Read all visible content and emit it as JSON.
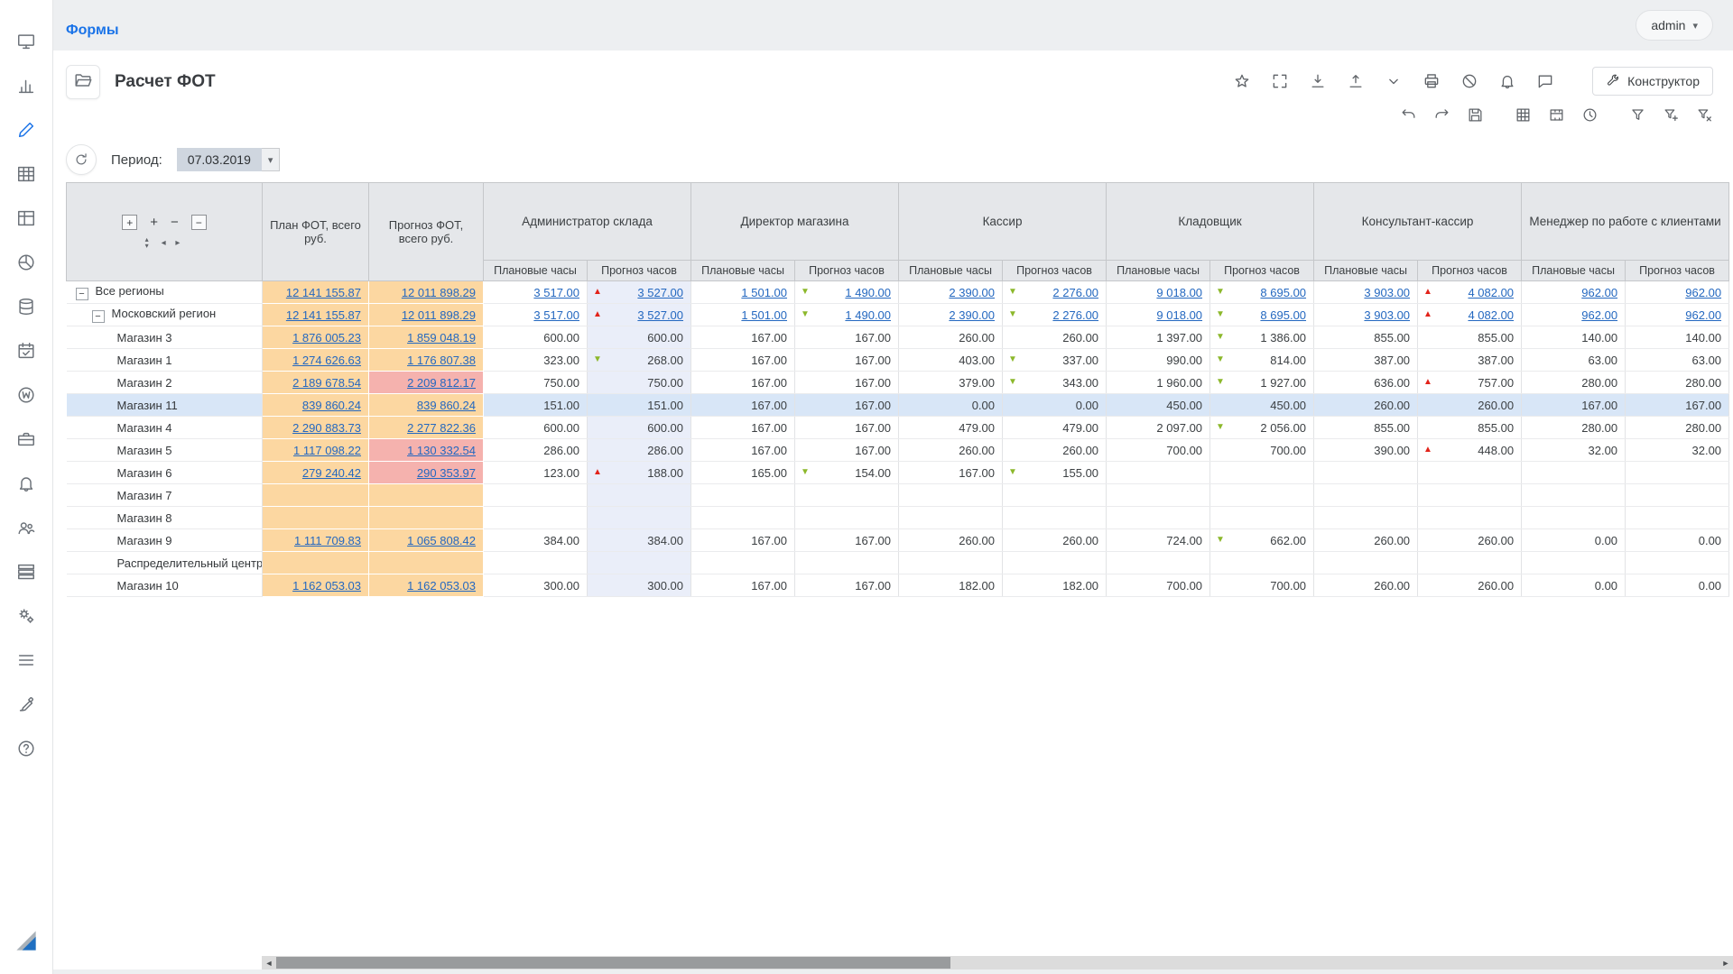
{
  "topbar": {
    "breadcrumb": "Формы",
    "user": "admin"
  },
  "header": {
    "title": "Расчет ФОТ",
    "constructor_label": "Конструктор",
    "toolbar_row1": [
      {
        "name": "favorite-star-icon"
      },
      {
        "name": "fullscreen-icon"
      },
      {
        "name": "download-icon"
      },
      {
        "name": "upload-icon"
      },
      {
        "name": "chevron-down-icon"
      },
      {
        "name": "print-icon"
      },
      {
        "name": "cancel-icon"
      },
      {
        "name": "notifications-bell-icon"
      },
      {
        "name": "comment-icon"
      }
    ],
    "toolbar_row2": [
      {
        "name": "undo-icon"
      },
      {
        "name": "redo-icon"
      },
      {
        "name": "save-icon"
      },
      {
        "name": "gridlines-icon",
        "gap": true
      },
      {
        "name": "merge-cells-icon"
      },
      {
        "name": "history-clock-icon"
      },
      {
        "name": "filter-icon",
        "gap": true
      },
      {
        "name": "filter-add-icon"
      },
      {
        "name": "filter-clear-icon"
      }
    ]
  },
  "sidebar": {
    "icons": [
      {
        "name": "monitor-icon"
      },
      {
        "name": "bar-chart-icon"
      },
      {
        "name": "edit-icon",
        "active": true
      },
      {
        "name": "table-icon"
      },
      {
        "name": "columns-icon"
      },
      {
        "name": "dashboard-icon"
      },
      {
        "name": "database-icon"
      },
      {
        "name": "calendar-icon"
      },
      {
        "name": "wiki-icon"
      },
      {
        "name": "briefcase-icon"
      },
      {
        "name": "bell-icon"
      },
      {
        "name": "users-icon"
      },
      {
        "name": "rows-icon"
      },
      {
        "name": "gears-icon"
      },
      {
        "name": "menu-icon"
      },
      {
        "name": "brush-icon"
      },
      {
        "name": "help-icon"
      }
    ]
  },
  "period": {
    "label": "Период:",
    "value": "07.03.2019"
  },
  "table": {
    "plan_header": "План ФОТ, всего руб.",
    "forecast_header": "Прогноз ФОТ, всего руб.",
    "groups": [
      "Администратор склада",
      "Директор магазина",
      "Кассир",
      "Кладовщик",
      "Консультант-кассир",
      "Менеджер по работе с клиентами"
    ],
    "sub_headers": [
      "Плановые часы",
      "Прогноз часов"
    ],
    "corner_controls": [
      {
        "name": "expand-all-button",
        "glyph": "+",
        "boxed": true
      },
      {
        "name": "expand-level-button",
        "glyph": "+"
      },
      {
        "name": "collapse-level-button",
        "glyph": "−"
      },
      {
        "name": "collapse-all-button",
        "glyph": "−",
        "boxed": true
      }
    ],
    "corner_nav": {
      "up": "▴",
      "down": "▾",
      "left": "◂",
      "right": "▸"
    },
    "rows": [
      {
        "label": "Все регионы",
        "level": 0,
        "toggle": true,
        "links": true,
        "selected": false,
        "plan": "12 141 155.87",
        "forecast": "12 011 898.29",
        "forecast_alert": false,
        "hours": [
          "3 517.00",
          {
            "v": "3 527.00",
            "i": "up"
          },
          "1 501.00",
          {
            "v": "1 490.00",
            "i": "down"
          },
          "2 390.00",
          {
            "v": "2 276.00",
            "i": "down"
          },
          "9 018.00",
          {
            "v": "8 695.00",
            "i": "down"
          },
          "3 903.00",
          {
            "v": "4 082.00",
            "i": "up"
          },
          "962.00",
          "962.00"
        ]
      },
      {
        "label": "Московский регион",
        "level": 1,
        "toggle": true,
        "links": true,
        "selected": false,
        "plan": "12 141 155.87",
        "forecast": "12 011 898.29",
        "forecast_alert": false,
        "hours": [
          "3 517.00",
          {
            "v": "3 527.00",
            "i": "up"
          },
          "1 501.00",
          {
            "v": "1 490.00",
            "i": "down"
          },
          "2 390.00",
          {
            "v": "2 276.00",
            "i": "down"
          },
          "9 018.00",
          {
            "v": "8 695.00",
            "i": "down"
          },
          "3 903.00",
          {
            "v": "4 082.00",
            "i": "up"
          },
          "962.00",
          "962.00"
        ]
      },
      {
        "label": "Магазин 3",
        "level": 2,
        "toggle": false,
        "links": false,
        "selected": false,
        "plan": "1 876 005.23",
        "forecast": "1 859 048.19",
        "forecast_alert": false,
        "hours": [
          "600.00",
          "600.00",
          "167.00",
          "167.00",
          "260.00",
          "260.00",
          "1 397.00",
          {
            "v": "1 386.00",
            "i": "down"
          },
          "855.00",
          "855.00",
          "140.00",
          "140.00"
        ]
      },
      {
        "label": "Магазин 1",
        "level": 2,
        "toggle": false,
        "links": false,
        "selected": false,
        "plan": "1 274 626.63",
        "forecast": "1 176 807.38",
        "forecast_alert": false,
        "hours": [
          "323.00",
          {
            "v": "268.00",
            "i": "down"
          },
          "167.00",
          "167.00",
          "403.00",
          {
            "v": "337.00",
            "i": "down"
          },
          "990.00",
          {
            "v": "814.00",
            "i": "down"
          },
          "387.00",
          "387.00",
          "63.00",
          "63.00"
        ]
      },
      {
        "label": "Магазин 2",
        "level": 2,
        "toggle": false,
        "links": false,
        "selected": false,
        "plan": "2 189 678.54",
        "forecast": "2 209 812.17",
        "forecast_alert": true,
        "hours": [
          "750.00",
          "750.00",
          "167.00",
          "167.00",
          "379.00",
          {
            "v": "343.00",
            "i": "down"
          },
          "1 960.00",
          {
            "v": "1 927.00",
            "i": "down"
          },
          "636.00",
          {
            "v": "757.00",
            "i": "up"
          },
          "280.00",
          "280.00"
        ]
      },
      {
        "label": "Магазин 11",
        "level": 2,
        "toggle": false,
        "links": false,
        "selected": true,
        "plan": "839 860.24",
        "forecast": "839 860.24",
        "forecast_alert": false,
        "hours": [
          "151.00",
          "151.00",
          "167.00",
          "167.00",
          "0.00",
          "0.00",
          "450.00",
          "450.00",
          "260.00",
          "260.00",
          "167.00",
          "167.00"
        ]
      },
      {
        "label": "Магазин 4",
        "level": 2,
        "toggle": false,
        "links": false,
        "selected": false,
        "plan": "2 290 883.73",
        "forecast": "2 277 822.36",
        "forecast_alert": false,
        "hours": [
          "600.00",
          "600.00",
          "167.00",
          "167.00",
          "479.00",
          "479.00",
          "2 097.00",
          {
            "v": "2 056.00",
            "i": "down"
          },
          "855.00",
          "855.00",
          "280.00",
          "280.00"
        ]
      },
      {
        "label": "Магазин 5",
        "level": 2,
        "toggle": false,
        "links": false,
        "selected": false,
        "plan": "1 117 098.22",
        "forecast": "1 130 332.54",
        "forecast_alert": true,
        "hours": [
          "286.00",
          "286.00",
          "167.00",
          "167.00",
          "260.00",
          "260.00",
          "700.00",
          "700.00",
          "390.00",
          {
            "v": "448.00",
            "i": "up"
          },
          "32.00",
          "32.00"
        ]
      },
      {
        "label": "Магазин 6",
        "level": 2,
        "toggle": false,
        "links": false,
        "selected": false,
        "plan": "279 240.42",
        "forecast": "290 353.97",
        "forecast_alert": true,
        "hours": [
          "123.00",
          {
            "v": "188.00",
            "i": "up"
          },
          "165.00",
          {
            "v": "154.00",
            "i": "down"
          },
          "167.00",
          {
            "v": "155.00",
            "i": "down"
          },
          null,
          null,
          null,
          null,
          null,
          null
        ]
      },
      {
        "label": "Магазин 7",
        "level": 2,
        "toggle": false,
        "links": false,
        "selected": false,
        "plan": null,
        "forecast": null,
        "forecast_alert": false,
        "hours": [
          null,
          null,
          null,
          null,
          null,
          null,
          null,
          null,
          null,
          null,
          null,
          null
        ]
      },
      {
        "label": "Магазин 8",
        "level": 2,
        "toggle": false,
        "links": false,
        "selected": false,
        "plan": null,
        "forecast": null,
        "forecast_alert": false,
        "hours": [
          null,
          null,
          null,
          null,
          null,
          null,
          null,
          null,
          null,
          null,
          null,
          null
        ]
      },
      {
        "label": "Магазин 9",
        "level": 2,
        "toggle": false,
        "links": false,
        "selected": false,
        "plan": "1 111 709.83",
        "forecast": "1 065 808.42",
        "forecast_alert": false,
        "hours": [
          "384.00",
          "384.00",
          "167.00",
          "167.00",
          "260.00",
          "260.00",
          "724.00",
          {
            "v": "662.00",
            "i": "down"
          },
          "260.00",
          "260.00",
          "0.00",
          "0.00"
        ]
      },
      {
        "label": "Распределительный центр",
        "level": 2,
        "toggle": false,
        "links": false,
        "selected": false,
        "plan": null,
        "forecast": null,
        "forecast_alert": false,
        "hours": [
          null,
          null,
          null,
          null,
          null,
          null,
          null,
          null,
          null,
          null,
          null,
          null
        ]
      },
      {
        "label": "Магазин 10",
        "level": 2,
        "toggle": false,
        "links": false,
        "selected": false,
        "plan": "1 162 053.03",
        "forecast": "1 162 053.03",
        "forecast_alert": false,
        "hours": [
          "300.00",
          "300.00",
          "167.00",
          "167.00",
          "182.00",
          "182.00",
          "700.00",
          "700.00",
          "260.00",
          "260.00",
          "0.00",
          "0.00"
        ]
      }
    ]
  },
  "colors": {
    "accent_blue": "#1a73e8",
    "link_blue": "#2468c0",
    "plan_bg": "#fcd7a1",
    "alert_bg": "#f5b2ae",
    "selected_bg": "#d8e6f7",
    "tint_bg": "#eaeef9",
    "up_red": "#e2231a",
    "down_green": "#8cb82b"
  }
}
